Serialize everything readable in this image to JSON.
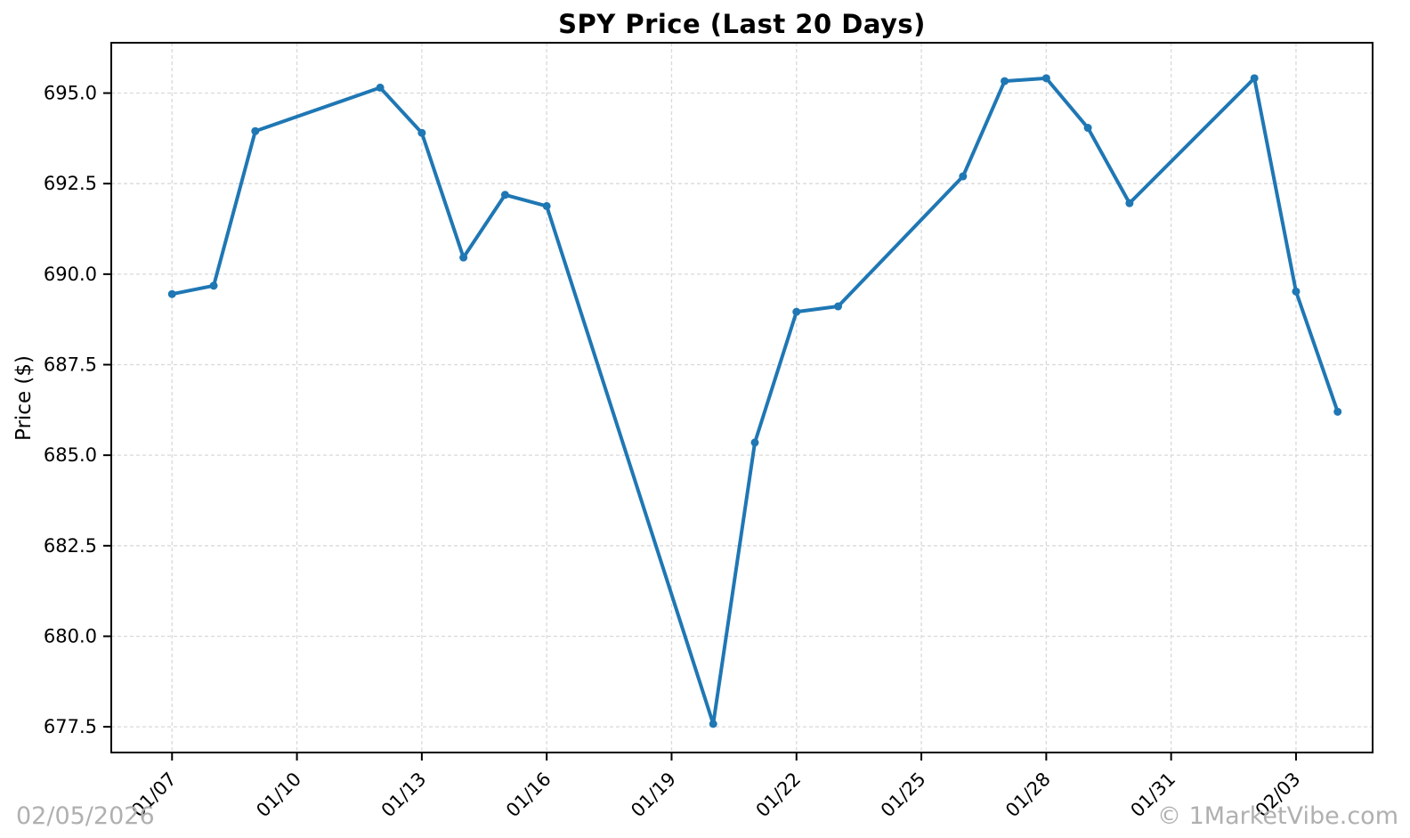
{
  "watermarks": {
    "date": "02/05/2026",
    "brand": "© 1MarketVibe.com"
  },
  "chart_data": {
    "type": "line",
    "title": "SPY Price (Last 20 Days)",
    "xlabel": "",
    "ylabel": "Price ($)",
    "legend_position": "none",
    "grid": true,
    "series": [
      {
        "name": "SPY",
        "dates": [
          "01/07",
          "01/08",
          "01/09",
          "01/12",
          "01/13",
          "01/14",
          "01/15",
          "01/16",
          "01/20",
          "01/21",
          "01/22",
          "01/23",
          "01/26",
          "01/27",
          "01/28",
          "01/29",
          "01/30",
          "02/02",
          "02/03",
          "02/04"
        ],
        "day_offsets": [
          0,
          1,
          2,
          5,
          6,
          7,
          8,
          9,
          13,
          14,
          15,
          16,
          19,
          20,
          21,
          22,
          23,
          26,
          27,
          28
        ],
        "values": [
          689.45,
          689.68,
          693.95,
          695.15,
          693.9,
          690.46,
          692.19,
          691.88,
          677.58,
          685.35,
          688.96,
          689.11,
          692.7,
          695.33,
          695.41,
          694.04,
          691.96,
          695.41,
          689.52,
          686.2
        ]
      }
    ],
    "x_ticks": {
      "labels": [
        "01/07",
        "01/10",
        "01/13",
        "01/16",
        "01/19",
        "01/22",
        "01/25",
        "01/28",
        "01/31",
        "02/03"
      ],
      "day_offsets": [
        0,
        3,
        6,
        9,
        12,
        15,
        18,
        21,
        24,
        27
      ],
      "rotation_deg": 45
    },
    "y_ticks": [
      677.5,
      680.0,
      682.5,
      685.0,
      687.5,
      690.0,
      692.5,
      695.0
    ],
    "ylim": [
      676.79,
      696.39
    ],
    "xlim_day_offsets": [
      -1.46,
      28.84
    ],
    "style": {
      "line_color": "#1f77b4",
      "marker": "circle",
      "marker_radius": 4.5,
      "line_width": 4,
      "grid_color": "#d9d9d9",
      "grid_dash": "4 3",
      "axis_color": "#000000",
      "tick_label_color": "#000000",
      "watermark_color": "#b0b0b0"
    }
  }
}
